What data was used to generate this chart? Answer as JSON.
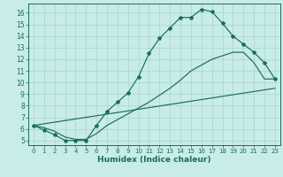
{
  "bg_color": "#c8ece8",
  "grid_color": "#a8d4d0",
  "line_color": "#1a6b5e",
  "xlabel": "Humidex (Indice chaleur)",
  "xlim": [
    -0.5,
    23.5
  ],
  "ylim": [
    4.6,
    16.8
  ],
  "xticks": [
    0,
    1,
    2,
    3,
    4,
    5,
    6,
    7,
    8,
    9,
    10,
    11,
    12,
    13,
    14,
    15,
    16,
    17,
    18,
    19,
    20,
    21,
    22,
    23
  ],
  "yticks": [
    5,
    6,
    7,
    8,
    9,
    10,
    11,
    12,
    13,
    14,
    15,
    16
  ],
  "curve_x": [
    0,
    1,
    2,
    3,
    4,
    5,
    6,
    7,
    8,
    9,
    10,
    11,
    12,
    13,
    14,
    15,
    16,
    17,
    18,
    19,
    20,
    21,
    22,
    23
  ],
  "curve_y": [
    6.3,
    5.9,
    5.5,
    5.0,
    5.0,
    5.0,
    6.3,
    7.5,
    8.3,
    9.1,
    10.5,
    12.5,
    13.8,
    14.7,
    15.6,
    15.6,
    16.3,
    16.1,
    15.1,
    14.0,
    13.3,
    12.6,
    11.7,
    10.3
  ],
  "line2_x": [
    0,
    23
  ],
  "line2_y": [
    6.3,
    9.5
  ],
  "line3_x": [
    0,
    1,
    2,
    3,
    4,
    5,
    6,
    7,
    8,
    9,
    10,
    11,
    12,
    13,
    14,
    15,
    16,
    17,
    18,
    19,
    20,
    21,
    22,
    23
  ],
  "line3_y": [
    6.3,
    6.1,
    5.8,
    5.3,
    5.1,
    5.1,
    5.6,
    6.3,
    6.8,
    7.3,
    7.8,
    8.3,
    8.9,
    9.5,
    10.2,
    11.0,
    11.5,
    12.0,
    12.3,
    12.6,
    12.6,
    11.7,
    10.3,
    10.3
  ]
}
